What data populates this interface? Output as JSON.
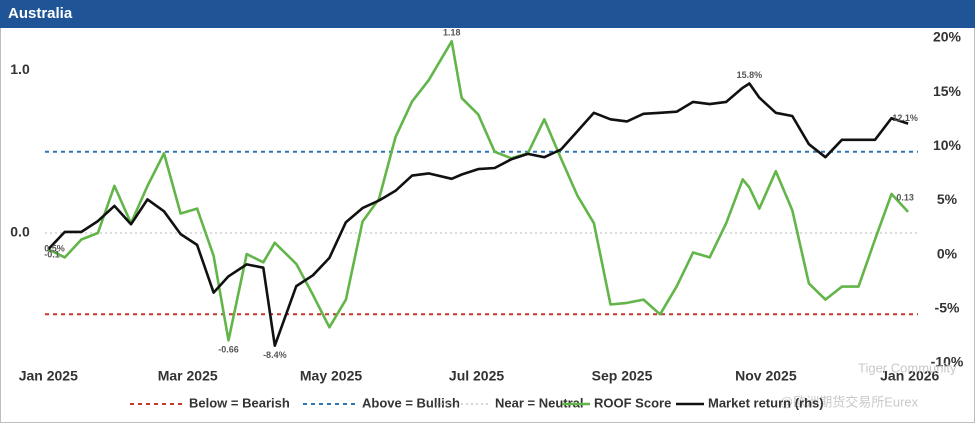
{
  "chart_data": {
    "type": "line",
    "title": "Australia",
    "x": [
      0,
      1,
      2,
      3,
      4,
      5,
      6,
      7,
      8,
      9,
      10,
      10.9,
      12,
      13,
      13.7,
      15,
      16,
      17,
      18,
      19,
      20,
      21,
      22,
      23,
      24.4,
      25,
      26,
      27,
      28,
      29,
      30,
      31,
      32,
      33,
      34,
      35,
      36,
      37,
      38,
      39,
      40,
      41,
      42,
      42.4,
      43,
      44,
      45,
      46,
      47,
      48,
      49,
      50,
      51,
      52
    ],
    "xlim": [
      -0.2,
      52.6
    ],
    "xticks": [
      {
        "value": 0,
        "label": "Jan 2025"
      },
      {
        "value": 8.43,
        "label": "Mar 2025"
      },
      {
        "value": 17.1,
        "label": "May 2025"
      },
      {
        "value": 25.9,
        "label": "Jul 2025"
      },
      {
        "value": 34.7,
        "label": "Sep 2025"
      },
      {
        "value": 43.4,
        "label": "Nov 2025"
      },
      {
        "value": 52.1,
        "label": "Jan 2026"
      }
    ],
    "ylim": [
      -0.8,
      1.2
    ],
    "yticks": [
      {
        "value": 1,
        "label": "1.0"
      },
      {
        "value": 0,
        "label": "0.0"
      }
    ],
    "y2lim": [
      -10,
      20
    ],
    "y2ticks": [
      {
        "value": 20,
        "label": "20%"
      },
      {
        "value": 15,
        "label": "15%"
      },
      {
        "value": 10,
        "label": "10%"
      },
      {
        "value": 5,
        "label": "5%"
      },
      {
        "value": 0,
        "label": "0%"
      },
      {
        "value": -5,
        "label": "-5%"
      },
      {
        "value": -10,
        "label": "-10%"
      }
    ],
    "reference_lines": [
      {
        "name": "Below = Bearish",
        "value": -0.5,
        "color": "#c0392b"
      },
      {
        "name": "Above = Bullish",
        "value": 0.5,
        "color": "#2e75b6"
      },
      {
        "name": "Near = Neutral",
        "value": 0,
        "color": "#c8c8c8"
      }
    ],
    "series": [
      {
        "name": "ROOF Score",
        "color": "#62b548",
        "values": [
          -0.1,
          -0.15,
          -0.04,
          0,
          0.29,
          0.06,
          0.29,
          0.49,
          0.12,
          0.15,
          -0.14,
          -0.66,
          -0.13,
          -0.18,
          -0.06,
          -0.19,
          -0.38,
          -0.58,
          -0.41,
          0.07,
          0.21,
          0.59,
          0.81,
          0.94,
          1.18,
          0.83,
          0.73,
          0.5,
          0.46,
          0.49,
          0.7,
          0.46,
          0.23,
          0.06,
          -0.44,
          -0.43,
          -0.41,
          -0.5,
          -0.33,
          -0.12,
          -0.15,
          0.06,
          0.33,
          0.28,
          0.15,
          0.38,
          0.14,
          -0.31,
          -0.41,
          -0.33,
          -0.33,
          -0.04,
          0.24,
          0.13
        ],
        "value_labels": [
          "-0.1",
          null,
          null,
          null,
          null,
          null,
          null,
          null,
          null,
          null,
          null,
          "-0.66",
          null,
          null,
          null,
          null,
          null,
          null,
          null,
          null,
          null,
          null,
          null,
          null,
          "1.18",
          null,
          null,
          null,
          null,
          null,
          null,
          null,
          null,
          null,
          null,
          null,
          null,
          null,
          null,
          null,
          null,
          null,
          null,
          null,
          null,
          null,
          null,
          null,
          null,
          null,
          null,
          null,
          null,
          "0.13"
        ]
      },
      {
        "name": "Market return (rhs)",
        "color": "#111111",
        "axis": "y2",
        "values": [
          0.5,
          2.1,
          2.1,
          3.1,
          4.5,
          2.8,
          5.1,
          4.0,
          1.9,
          0.9,
          -3.5,
          -2.0,
          -0.9,
          -1.2,
          -8.4,
          -2.9,
          -1.9,
          -0.3,
          3.0,
          4.3,
          5.0,
          5.9,
          7.3,
          7.5,
          7.0,
          7.4,
          7.9,
          8.0,
          8.8,
          9.3,
          9.0,
          9.7,
          11.4,
          13.1,
          12.5,
          12.3,
          13.0,
          13.1,
          13.2,
          14.1,
          13.9,
          14.1,
          15.4,
          15.8,
          14.5,
          13.1,
          12.8,
          10.2,
          9.0,
          10.6,
          10.6,
          10.6,
          12.6,
          12.1
        ],
        "value_labels": [
          "0.5%",
          null,
          null,
          null,
          null,
          null,
          null,
          null,
          null,
          null,
          null,
          null,
          null,
          null,
          "-8.4%",
          null,
          null,
          null,
          null,
          null,
          null,
          null,
          null,
          null,
          null,
          null,
          null,
          null,
          null,
          null,
          null,
          null,
          null,
          null,
          null,
          null,
          null,
          null,
          null,
          null,
          null,
          null,
          null,
          "15.8%",
          null,
          null,
          null,
          null,
          null,
          null,
          null,
          null,
          null,
          "12.1%"
        ]
      }
    ],
    "watermarks": [
      "Tiger Community",
      "@欧洲期货交易所Eurex"
    ]
  }
}
